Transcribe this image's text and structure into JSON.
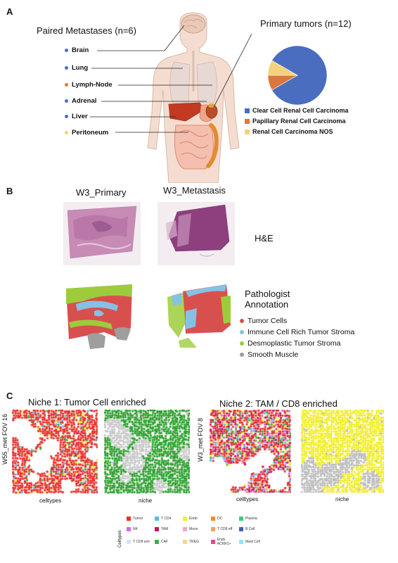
{
  "panel_a": {
    "letter": "A",
    "metastases_title": "Paired Metastases (n=6)",
    "primary_title": "Primary tumors (n=12)",
    "sites": [
      {
        "label": "Brain",
        "color": "#4b6fc2"
      },
      {
        "label": "Lung",
        "color": "#4b6fc2"
      },
      {
        "label": "Lymph-Node",
        "color": "#e07b39"
      },
      {
        "label": "Adrenal",
        "color": "#4b6fc2"
      },
      {
        "label": "Liver",
        "color": "#4b6fc2"
      },
      {
        "label": "Peritoneum",
        "color": "#f3d36a"
      }
    ],
    "chart_data": {
      "type": "pie",
      "categories": [
        "Clear Cell Renal Cell Carcinoma",
        "Papillary Renal Cell Carcinoma",
        "Renal Cell Carcinoma NOS"
      ],
      "values": [
        10,
        1,
        1
      ],
      "colors": [
        "#4a6dc0",
        "#d9783c",
        "#f4d27c"
      ]
    }
  },
  "panel_b": {
    "letter": "B",
    "sample_primary": "W3_Primary",
    "sample_metastasis": "W3_Metastasis",
    "he_label": "H&E",
    "annotation_title_line1": "Pathologist",
    "annotation_title_line2": "Annotation",
    "annotations": [
      {
        "label": "Tumor Cells",
        "color": "#d8504e"
      },
      {
        "label": "Immune Cell Rich Tumor Stroma",
        "color": "#86c1e4"
      },
      {
        "label": "Desmoplastic Tumor Stroma",
        "color": "#9ccc3c"
      },
      {
        "label": "Smooth Muscle",
        "color": "#9e9e9e"
      }
    ]
  },
  "panel_c": {
    "letter": "C",
    "niche1_title": "Niche 1: Tumor Cell  enriched",
    "niche2_title": "Niche 2: TAM / CD8 enriched",
    "fov1_label": "W55_met FOV 16",
    "fov2_label": "W3_met FOV 8",
    "celltypes_label": "celltypes",
    "niche_label": "niche",
    "legend_title": "Celltypes",
    "celltypes": [
      {
        "label": "Tumor",
        "color": "#e8322b"
      },
      {
        "label": "T CD4",
        "color": "#5fb8e8"
      },
      {
        "label": "Endo",
        "color": "#eaf03a"
      },
      {
        "label": "DC",
        "color": "#ef8a2a"
      },
      {
        "label": "Plasma",
        "color": "#34d17a"
      },
      {
        "label": "NK",
        "color": "#d66ad8"
      },
      {
        "label": "TAM",
        "color": "#c2185b"
      },
      {
        "label": "Mono",
        "color": "#f3a7c8"
      },
      {
        "label": "T CD8 eff",
        "color": "#f2a06d"
      },
      {
        "label": "B Cell",
        "color": "#3f5fc8"
      },
      {
        "label": "T CD8 exh",
        "color": "#d9e3ef"
      },
      {
        "label": "CAF",
        "color": "#38b44a"
      },
      {
        "label": "TREG",
        "color": "#f4d88a"
      },
      {
        "label": "Endo ACKR1+",
        "color": "#e34a8a"
      },
      {
        "label": "Mast Cell",
        "color": "#8ee8f2"
      }
    ]
  }
}
